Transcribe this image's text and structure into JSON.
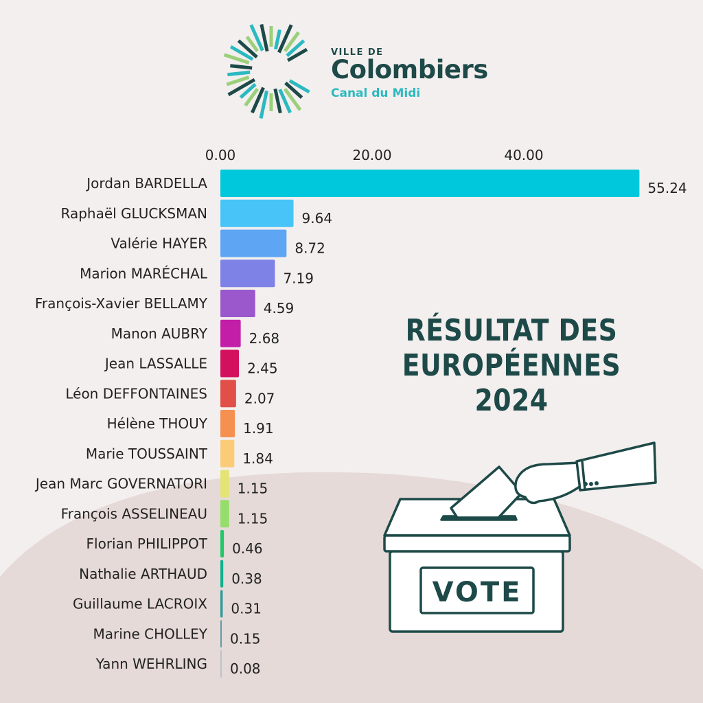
{
  "logo": {
    "line1": "VILLE DE",
    "line2": "Colombiers",
    "line3": "Canal du Midi",
    "colors": [
      "#1d4a48",
      "#2bb9c0",
      "#9bcf7a"
    ]
  },
  "title": {
    "line1": "RÉSULTAT DES",
    "line2": "EUROPÉENNES",
    "line3": "2024"
  },
  "illustration": {
    "label": "VOTE",
    "icon": "ballot-box-hand-icon"
  },
  "colors": {
    "background": "#f3efee",
    "accent_shape": "#e5dad7",
    "title": "#1d4a48"
  },
  "chart_data": {
    "type": "bar",
    "orientation": "horizontal",
    "xlim": [
      0,
      55.24
    ],
    "xticks": [
      "0.00",
      "20.00",
      "40.00"
    ],
    "xtick_values": [
      0,
      20,
      40
    ],
    "axis_position": "top",
    "grid": false,
    "categories": [
      "Jordan BARDELLA",
      "Raphaël GLUCKSMAN",
      "Valérie HAYER",
      "Marion MARÉCHAL",
      "François-Xavier BELLAMY",
      "Manon AUBRY",
      "Jean LASSALLE",
      "Léon DEFFONTAINES",
      "Hélène THOUY",
      "Marie TOUSSAINT",
      "Jean Marc GOVERNATORI",
      "François ASSELINEAU",
      "Florian PHILIPPOT",
      "Nathalie ARTHAUD",
      "Guillaume LACROIX",
      "Marine CHOLLEY",
      "Yann WEHRLING"
    ],
    "values": [
      55.24,
      9.64,
      8.72,
      7.19,
      4.59,
      2.68,
      2.45,
      2.07,
      1.91,
      1.84,
      1.15,
      1.15,
      0.46,
      0.38,
      0.31,
      0.15,
      0.08
    ],
    "labels": [
      "55.24",
      "9.64",
      "8.72",
      "7.19",
      "4.59",
      "2.68",
      "2.45",
      "2.07",
      "1.91",
      "1.84",
      "1.15",
      "1.15",
      "0.46",
      "0.38",
      "0.31",
      "0.15",
      "0.08"
    ],
    "bar_colors": [
      "#00c8dc",
      "#48c4f8",
      "#5ea6f4",
      "#7e82e6",
      "#9a58cc",
      "#c21ea8",
      "#d2105e",
      "#e05048",
      "#f59050",
      "#fccb78",
      "#e4e474",
      "#95de6a",
      "#20c86a",
      "#10b08c",
      "#2f9a98",
      "#609ca8",
      "#b8c4cc"
    ]
  }
}
